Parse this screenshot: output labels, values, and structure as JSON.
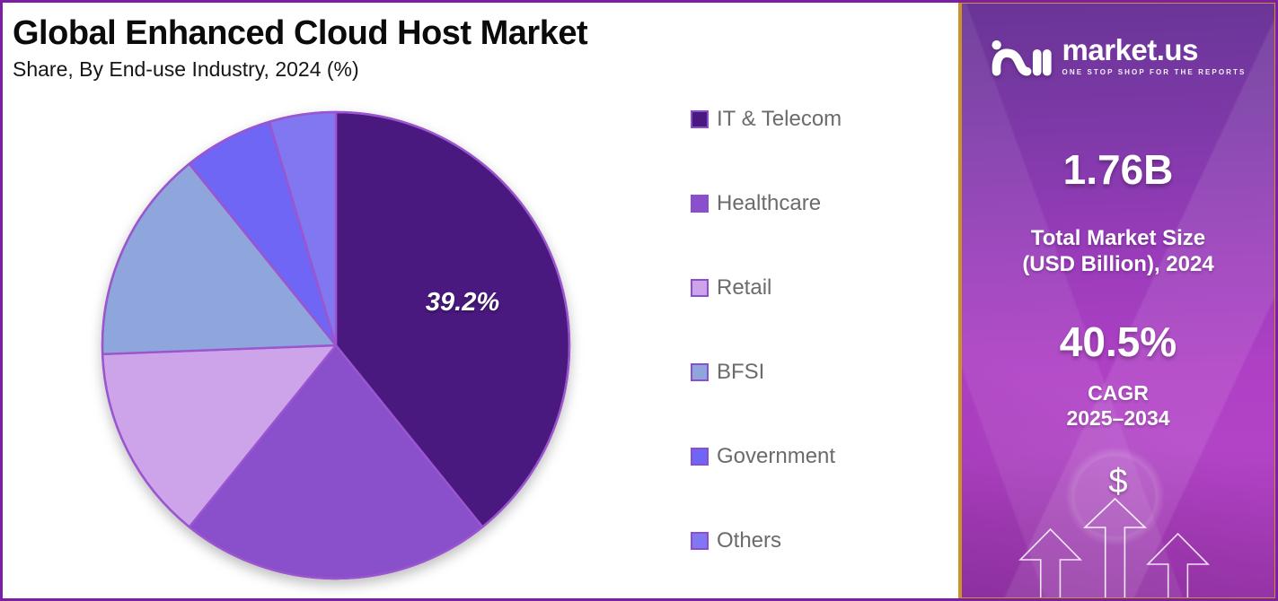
{
  "header": {
    "title": "Global Enhanced Cloud Host Market",
    "subtitle": "Share, By End-use Industry, 2024 (%)"
  },
  "chart_data": {
    "type": "pie",
    "title": "Global Enhanced Cloud Host Market Share, By End-use Industry, 2024 (%)",
    "categories": [
      "IT & Telecom",
      "Healthcare",
      "Retail",
      "BFSI",
      "Government",
      "Others"
    ],
    "values": [
      39.2,
      21.6,
      13.6,
      14.8,
      6.2,
      4.6
    ],
    "unit": "%",
    "colors": [
      "#4a1980",
      "#8a4fcb",
      "#cda4ea",
      "#8ea6db",
      "#6f66f5",
      "#8177f0"
    ],
    "stroke_color": "#9b55cf",
    "start_angle": "12-oclock",
    "direction": "clockwise",
    "legend_position": "right",
    "annotations": [
      {
        "slice": "IT & Telecom",
        "text": "39.2%"
      }
    ]
  },
  "panel": {
    "brand": {
      "name": "market.us",
      "tagline": "ONE STOP SHOP FOR THE REPORTS"
    },
    "market_size": {
      "value": "1.76B",
      "label_line1": "Total Market Size",
      "label_line2": "(USD Billion), 2024"
    },
    "cagr": {
      "value": "40.5%",
      "label_line1": "CAGR",
      "label_line2": "2025–2034"
    },
    "dollar_symbol": "$"
  },
  "colors": {
    "canvas_border": "#7c1fa5",
    "panel_border": "#cc9327",
    "panel_purple": "#7c39a7",
    "panel_magenta": "#b243c7",
    "legend_swatch_border": "#8a4fd0"
  }
}
